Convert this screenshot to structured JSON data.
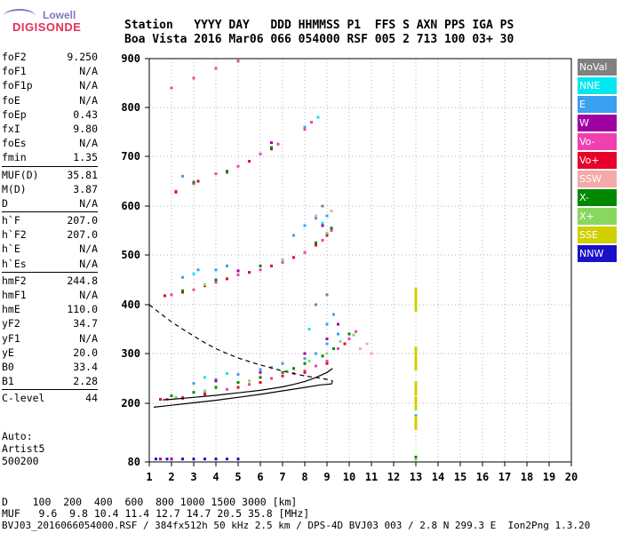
{
  "logo": {
    "line1": "Lowell",
    "line2": "DIGISONDE"
  },
  "header": {
    "line1": "Station   YYYY DAY   DDD HHMMSS P1  FFS S AXN PPS IGA PS",
    "line2": "Boa Vista 2016 Mar06 066 054000 RSF 005 2 713 100 03+ 30"
  },
  "params": {
    "group1": [
      [
        "foF2",
        "9.250"
      ],
      [
        "foF1",
        "N/A"
      ],
      [
        "foF1p",
        "N/A"
      ],
      [
        "foE",
        "N/A"
      ],
      [
        "foEp",
        "0.43"
      ],
      [
        "fxI",
        "9.80"
      ],
      [
        "foEs",
        "N/A"
      ],
      [
        "fmin",
        "1.35"
      ]
    ],
    "group2": [
      [
        "MUF(D)",
        "35.81"
      ],
      [
        "M(D)",
        "3.87"
      ],
      [
        "D",
        "N/A"
      ]
    ],
    "group3": [
      [
        "h`F",
        "207.0"
      ],
      [
        "h`F2",
        "207.0"
      ],
      [
        "h`E",
        "N/A"
      ],
      [
        "h`Es",
        "N/A"
      ]
    ],
    "group4": [
      [
        "hmF2",
        "244.8"
      ],
      [
        "hmF1",
        "N/A"
      ],
      [
        "hmE",
        "110.0"
      ],
      [
        "yF2",
        "34.7"
      ],
      [
        "yF1",
        "N/A"
      ],
      [
        "yE",
        "20.0"
      ],
      [
        "B0",
        "33.4"
      ],
      [
        "B1",
        "2.28"
      ]
    ],
    "group5": [
      [
        "C-level",
        "44"
      ]
    ]
  },
  "auto": {
    "line1": "Auto:",
    "line2": "Artist5",
    "line3": "500200"
  },
  "legend": [
    {
      "label": "NoVal",
      "color": "#808080"
    },
    {
      "label": "NNE",
      "color": "#00e8f0"
    },
    {
      "label": "E",
      "color": "#3aa0f0"
    },
    {
      "label": "W",
      "color": "#a000a0"
    },
    {
      "label": "Vo-",
      "color": "#f040b0"
    },
    {
      "label": "Vo+",
      "color": "#e8002a"
    },
    {
      "label": "SSW",
      "color": "#f4aaa8"
    },
    {
      "label": "X-",
      "color": "#008800"
    },
    {
      "label": "X+",
      "color": "#88d860"
    },
    {
      "label": "SSE",
      "color": "#d0d000"
    },
    {
      "label": "NNW",
      "color": "#1a10c8"
    }
  ],
  "bottom": {
    "line1": "D    100  200  400  600  800 1000 1500 3000 [km]",
    "line2": "MUF   9.6  9.8 10.4 11.4 12.7 14.7 20.5 35.8 [MHz]",
    "line3": "BVJ03_2016066054000.RSF / 384fx512h 50 kHz 2.5 km / DPS-4D BVJ03 003 / 2.8 N 299.3 E  Ion2Png 1.3.20"
  },
  "chart_data": {
    "type": "scatter",
    "xlabel": "",
    "ylabel": "",
    "xlim": [
      1,
      20
    ],
    "ylim": [
      80,
      900
    ],
    "x_ticks": [
      1,
      2,
      3,
      4,
      5,
      6,
      7,
      8,
      9,
      10,
      11,
      12,
      13,
      14,
      15,
      16,
      17,
      18,
      19,
      20
    ],
    "y_ticks": [
      80,
      200,
      300,
      400,
      500,
      600,
      700,
      800,
      900
    ],
    "series": [
      {
        "color_key": "Vo-",
        "points": [
          [
            1.8,
            208
          ],
          [
            2.5,
            212
          ],
          [
            3.5,
            220
          ],
          [
            4.5,
            228
          ],
          [
            5.5,
            238
          ],
          [
            6.5,
            250
          ],
          [
            7.5,
            260
          ],
          [
            8.0,
            265
          ],
          [
            8.5,
            275
          ],
          [
            9.0,
            285
          ],
          [
            9.5,
            310
          ],
          [
            10.0,
            330
          ],
          [
            10.3,
            345
          ],
          [
            2.0,
            420
          ],
          [
            3.0,
            430
          ],
          [
            4.0,
            445
          ],
          [
            5.0,
            460
          ],
          [
            6.0,
            470
          ],
          [
            7.0,
            485
          ],
          [
            8.0,
            505
          ],
          [
            8.8,
            530
          ],
          [
            9.2,
            550
          ],
          [
            2.2,
            630
          ],
          [
            3.0,
            645
          ],
          [
            4.0,
            665
          ],
          [
            5.0,
            680
          ],
          [
            6.0,
            705
          ],
          [
            6.8,
            725
          ],
          [
            2.0,
            840
          ],
          [
            3.0,
            860
          ],
          [
            4.0,
            880
          ],
          [
            5.0,
            895
          ],
          [
            8.0,
            755
          ],
          [
            8.3,
            770
          ]
        ]
      },
      {
        "color_key": "Vo+",
        "points": [
          [
            1.5,
            208
          ],
          [
            2.5,
            210
          ],
          [
            3.5,
            218
          ],
          [
            5.0,
            232
          ],
          [
            6.0,
            242
          ],
          [
            7.0,
            255
          ],
          [
            8.0,
            262
          ],
          [
            9.0,
            280
          ],
          [
            9.8,
            320
          ],
          [
            1.7,
            418
          ],
          [
            2.5,
            425
          ],
          [
            3.5,
            438
          ],
          [
            4.5,
            452
          ],
          [
            5.5,
            465
          ],
          [
            6.5,
            478
          ],
          [
            7.5,
            495
          ],
          [
            8.5,
            520
          ],
          [
            9.0,
            540
          ],
          [
            2.2,
            628
          ],
          [
            3.2,
            650
          ],
          [
            4.5,
            670
          ],
          [
            5.5,
            690
          ],
          [
            6.5,
            715
          ]
        ]
      },
      {
        "color_key": "X-",
        "points": [
          [
            2.0,
            215
          ],
          [
            3.0,
            222
          ],
          [
            4.0,
            232
          ],
          [
            5.0,
            242
          ],
          [
            6.0,
            252
          ],
          [
            7.0,
            262
          ],
          [
            7.5,
            270
          ],
          [
            8.0,
            280
          ],
          [
            8.8,
            295
          ],
          [
            9.3,
            310
          ],
          [
            10.0,
            340
          ],
          [
            2.5,
            428
          ],
          [
            4.0,
            450
          ],
          [
            6.0,
            478
          ],
          [
            8.5,
            525
          ],
          [
            9.2,
            555
          ],
          [
            3.0,
            648
          ],
          [
            4.5,
            668
          ],
          [
            6.5,
            718
          ],
          [
            13.0,
            90
          ]
        ]
      },
      {
        "color_key": "X+",
        "points": [
          [
            2.2,
            212
          ],
          [
            3.5,
            225
          ],
          [
            5.5,
            245
          ],
          [
            7.2,
            265
          ],
          [
            8.2,
            285
          ],
          [
            9.0,
            300
          ],
          [
            9.6,
            325
          ],
          [
            10.2,
            338
          ],
          [
            3.5,
            440
          ],
          [
            7.0,
            490
          ],
          [
            9.0,
            545
          ],
          [
            13.0,
            85
          ]
        ]
      },
      {
        "color_key": "E",
        "points": [
          [
            3.0,
            240
          ],
          [
            4.0,
            248
          ],
          [
            5.0,
            258
          ],
          [
            6.0,
            268
          ],
          [
            6.5,
            272
          ],
          [
            7.0,
            280
          ],
          [
            8.0,
            290
          ],
          [
            8.5,
            300
          ],
          [
            9.0,
            320
          ],
          [
            9.5,
            340
          ],
          [
            2.5,
            455
          ],
          [
            3.2,
            470
          ],
          [
            4.0,
            470
          ],
          [
            4.5,
            478
          ],
          [
            7.5,
            540
          ],
          [
            8.0,
            560
          ],
          [
            8.5,
            575
          ],
          [
            9.0,
            580
          ],
          [
            2.5,
            660
          ],
          [
            8.0,
            760
          ],
          [
            13.0,
            175
          ],
          [
            9.0,
            360
          ],
          [
            9.3,
            380
          ]
        ]
      },
      {
        "color_key": "NNE",
        "points": [
          [
            3.5,
            252
          ],
          [
            4.5,
            260
          ],
          [
            8.2,
            350
          ],
          [
            3.0,
            462
          ],
          [
            8.8,
            565
          ],
          [
            8.6,
            780
          ]
        ]
      },
      {
        "color_key": "W",
        "points": [
          [
            4.0,
            245
          ],
          [
            6.0,
            262
          ],
          [
            8.0,
            300
          ],
          [
            9.0,
            330
          ],
          [
            9.5,
            360
          ],
          [
            5.0,
            468
          ],
          [
            8.8,
            560
          ],
          [
            6.5,
            728
          ],
          [
            1.5,
            86
          ],
          [
            2.0,
            86
          ]
        ]
      },
      {
        "color_key": "SSW",
        "points": [
          [
            10.5,
            310
          ],
          [
            10.8,
            320
          ],
          [
            11.0,
            300
          ],
          [
            8.5,
            580
          ],
          [
            9.2,
            590
          ]
        ]
      },
      {
        "color_key": "SSE",
        "points": [
          [
            13.0,
            400
          ],
          [
            13.0,
            420
          ],
          [
            13.0,
            300
          ],
          [
            13.0,
            280
          ],
          [
            13.0,
            230
          ],
          [
            13.0,
            200
          ],
          [
            13.0,
            160
          ]
        ]
      },
      {
        "color_key": "NNW",
        "points": [
          [
            1.3,
            86
          ],
          [
            1.8,
            86
          ],
          [
            2.5,
            86
          ],
          [
            3.0,
            86
          ],
          [
            3.5,
            86
          ],
          [
            4.0,
            86
          ],
          [
            4.5,
            86
          ],
          [
            5.0,
            86
          ]
        ]
      },
      {
        "color_key": "NoVal",
        "points": [
          [
            8.5,
            400
          ],
          [
            9.0,
            420
          ],
          [
            8.8,
            600
          ]
        ]
      }
    ],
    "curves": [
      {
        "name": "dashed",
        "style": "dashed",
        "points": [
          [
            1.0,
            400
          ],
          [
            1.5,
            382
          ],
          [
            2.0,
            365
          ],
          [
            2.5,
            350
          ],
          [
            3.0,
            336
          ],
          [
            3.5,
            322
          ],
          [
            4.0,
            310
          ],
          [
            4.5,
            300
          ],
          [
            5.0,
            291
          ],
          [
            5.5,
            284
          ],
          [
            6.0,
            277
          ],
          [
            6.5,
            271
          ],
          [
            7.0,
            265
          ],
          [
            7.5,
            260
          ],
          [
            8.0,
            255
          ],
          [
            8.5,
            252
          ],
          [
            9.0,
            248
          ],
          [
            9.25,
            245
          ]
        ]
      },
      {
        "name": "trace_upper",
        "style": "solid",
        "points": [
          [
            1.6,
            207
          ],
          [
            2.0,
            208
          ],
          [
            3.0,
            212
          ],
          [
            4.0,
            216
          ],
          [
            5.0,
            221
          ],
          [
            6.0,
            226
          ],
          [
            7.0,
            233
          ],
          [
            7.5,
            238
          ],
          [
            8.0,
            244
          ],
          [
            8.5,
            252
          ],
          [
            9.0,
            262
          ],
          [
            9.25,
            270
          ]
        ]
      },
      {
        "name": "trace_lower",
        "style": "solid",
        "points": [
          [
            1.2,
            192
          ],
          [
            2.0,
            196
          ],
          [
            3.0,
            201
          ],
          [
            4.0,
            206
          ],
          [
            5.0,
            212
          ],
          [
            6.0,
            218
          ],
          [
            7.0,
            225
          ],
          [
            8.0,
            232
          ],
          [
            8.7,
            237
          ],
          [
            9.2,
            239
          ],
          [
            9.25,
            245
          ]
        ]
      }
    ]
  }
}
